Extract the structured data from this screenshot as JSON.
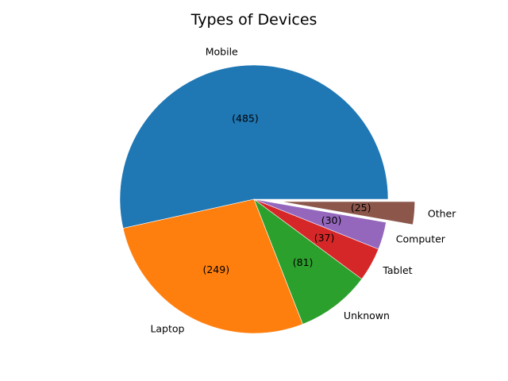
{
  "chart_data": {
    "type": "pie",
    "title": "Types of Devices",
    "categories": [
      "Mobile",
      "Laptop",
      "Unknown",
      "Tablet",
      "Computer",
      "Other"
    ],
    "values": [
      485,
      249,
      81,
      37,
      30,
      25
    ],
    "value_labels": [
      "(485)",
      "(249)",
      "(81)",
      "(37)",
      "(30)",
      "(25)"
    ],
    "colors": [
      "#1f77b4",
      "#ff7f0e",
      "#2ca02c",
      "#d62728",
      "#9467bd",
      "#8c564b"
    ],
    "explode": [
      0,
      0,
      0,
      0,
      0,
      0.2
    ],
    "start_angle_deg": 0,
    "direction": "counterclockwise",
    "legend": "none"
  }
}
